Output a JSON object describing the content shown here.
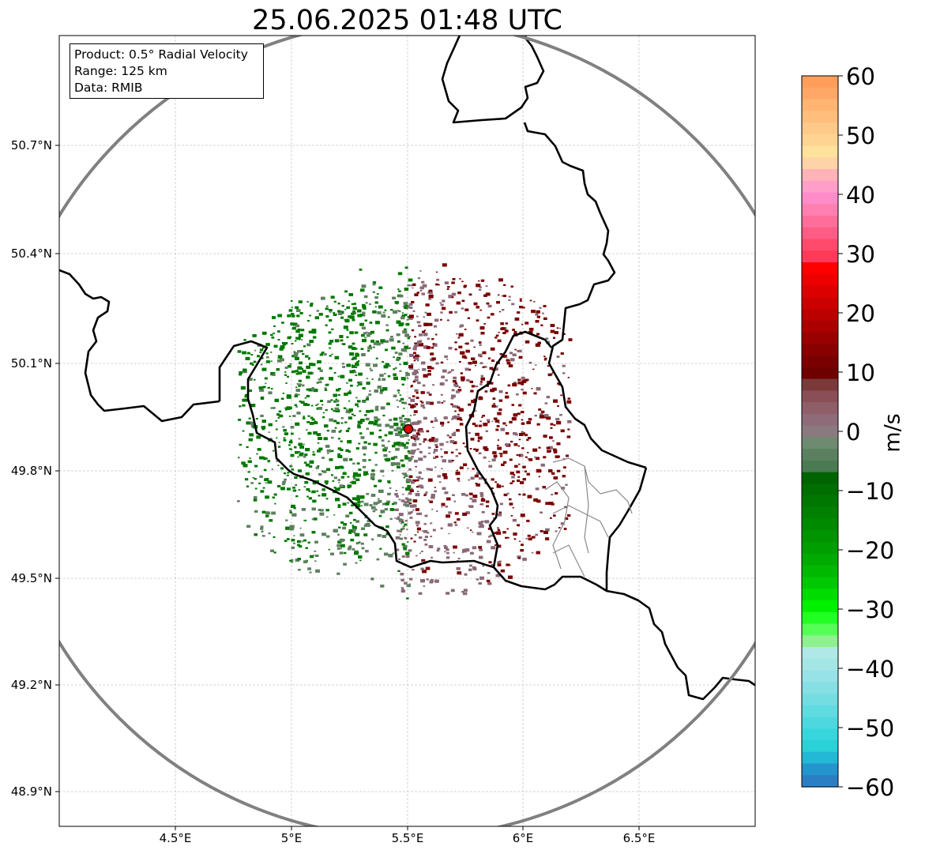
{
  "title": "25.06.2025 01:48 UTC",
  "info": {
    "product": "Product: 0.5° Radial Velocity",
    "range": "Range: 125 km",
    "data": "Data: RMIB"
  },
  "lat_ticks": [
    "50.7°N",
    "50.4°N",
    "50.1°N",
    "49.8°N",
    "49.5°N",
    "49.2°N",
    "48.9°N"
  ],
  "lon_ticks": [
    "4.5°E",
    "5°E",
    "5.5°E",
    "6°E",
    "6.5°E"
  ],
  "colorbar": {
    "unit": "m/s",
    "min": -60,
    "max": 60,
    "ticks": [
      "60",
      "50",
      "40",
      "30",
      "20",
      "10",
      "0",
      "−10",
      "−20",
      "−30",
      "−40",
      "−50",
      "−60"
    ],
    "colors_top_to_bottom": [
      "#ff9e5a",
      "#ffa766",
      "#ffb472",
      "#ffbe7c",
      "#ffc98a",
      "#ffd493",
      "#ffe29b",
      "#ffd3a8",
      "#ffb3b8",
      "#ff9ec8",
      "#ff8cc8",
      "#ff7fb0",
      "#ff6e9a",
      "#ff5c85",
      "#ff4a6c",
      "#ff3a58",
      "#ff0000",
      "#ee0000",
      "#dd0000",
      "#cc0000",
      "#bb0000",
      "#aa0000",
      "#990000",
      "#880000",
      "#7a0000",
      "#6e0000",
      "#7a3a3a",
      "#8a4e56",
      "#8f5e69",
      "#8f6b7a",
      "#8a7a80",
      "#6e8a70",
      "#5a8060",
      "#4a7a52",
      "#006400",
      "#006e00",
      "#007800",
      "#008000",
      "#008a00",
      "#009400",
      "#009e00",
      "#00aa00",
      "#00b800",
      "#00c800",
      "#00dc00",
      "#00f000",
      "#22ff22",
      "#55ff55",
      "#8ef08e",
      "#b0e8e8",
      "#a4e6e6",
      "#96e2e6",
      "#86dfe4",
      "#74dde2",
      "#60dbe0",
      "#4cd8de",
      "#36d6dc",
      "#2ad2d8",
      "#22b8d6",
      "#2494cc",
      "#2a7fc4"
    ]
  },
  "radar": {
    "site_lon": 5.5,
    "site_lat": 49.91,
    "range_km": 125,
    "colors": {
      "approaching": "#007800",
      "receding": "#7a0000",
      "near_zero_neg": "#5f8060",
      "near_zero_pos": "#8a6a78"
    }
  },
  "map": {
    "lon_range": [
      4.0,
      7.0
    ],
    "lat_range": [
      48.8,
      51.0
    ],
    "border_color": "#000000",
    "range_ring_color": "#808080"
  }
}
